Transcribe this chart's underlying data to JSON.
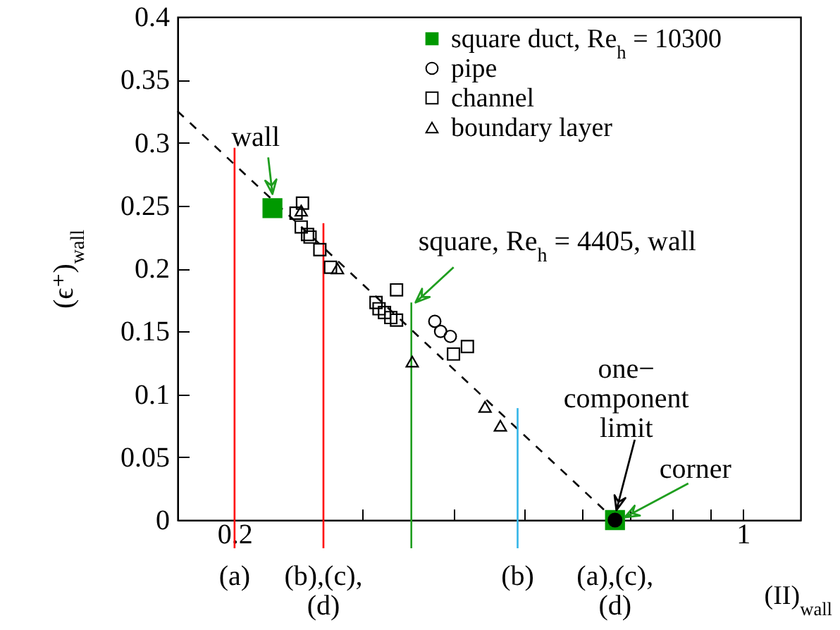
{
  "chart_data": {
    "type": "scatter",
    "xlabel": "(II)$_{wall}$",
    "ylabel": "(ϵ⁺)$_{wall}$",
    "log": "x",
    "xlim": [
      0.167,
      1.2
    ],
    "ylim": [
      0,
      0.4
    ],
    "xticks": [
      {
        "value": 0.2,
        "label": "0.2"
      },
      {
        "value": 0.3,
        "label": null
      },
      {
        "value": 0.4,
        "label": null
      },
      {
        "value": 0.5,
        "label": null
      },
      {
        "value": 0.6,
        "label": null
      },
      {
        "value": 0.7,
        "label": null
      },
      {
        "value": 0.8,
        "label": null
      },
      {
        "value": 0.9,
        "label": null
      },
      {
        "value": 1,
        "label": "1"
      }
    ],
    "yticks": [
      0,
      0.05,
      0.1,
      0.15,
      0.2,
      0.25,
      0.3,
      0.35,
      0.4
    ],
    "grid": false,
    "legend": "top right",
    "series": [
      {
        "name": "square duct, Re$_{h}$ = 10300",
        "marker": "square",
        "color": "#009900",
        "x": [
          0.2255,
          0.667
        ],
        "values": [
          0.248,
          0
        ]
      },
      {
        "name": "pipe",
        "marker": "circle",
        "color": "#000000",
        "x": [
          0.377,
          0.384,
          0.396
        ],
        "values": [
          0.158,
          0.15,
          0.146
        ]
      },
      {
        "name": "channel",
        "marker": "square",
        "color": "#000000",
        "x": [
          0.248,
          0.243,
          0.247,
          0.252,
          0.254,
          0.262,
          0.271,
          0.334,
          0.313,
          0.316,
          0.3215,
          0.328,
          0.334,
          0.418,
          0.4
        ],
        "values": [
          0.252,
          0.244,
          0.233,
          0.227,
          0.225,
          0.215,
          0.201,
          0.183,
          0.173,
          0.168,
          0.165,
          0.161,
          0.159,
          0.138,
          0.132
        ]
      },
      {
        "name": "boundary layer",
        "marker": "triangle",
        "color": "#000000",
        "x": [
          0.247,
          0.277,
          0.351,
          0.442,
          0.464
        ],
        "values": [
          0.246,
          0.2,
          0.126,
          0.09,
          0.075
        ]
      },
      {
        "marker": "circle",
        "color": "#000000",
        "x": [
          0.667
        ],
        "values": [
          0
        ]
      },
      {
        "type": "line",
        "line_style": "dashed",
        "color": "#000000",
        "x": [
          0.167,
          0.667
        ],
        "values": [
          0.325,
          0
        ]
      },
      {
        "type": "line",
        "line_style": "solid",
        "color": "#ff0000",
        "x": [
          0.2,
          0.2
        ],
        "values": [
          0,
          0.296
        ]
      },
      {
        "type": "line",
        "line_style": "solid",
        "color": "#ff0000",
        "x": [
          0.265,
          0.265
        ],
        "values": [
          0,
          0.236
        ]
      },
      {
        "type": "line",
        "line_style": "solid",
        "color": "#1f9e1f",
        "x": [
          0.35,
          0.35
        ],
        "values": [
          0,
          0.173
        ]
      },
      {
        "type": "line",
        "line_style": "solid",
        "color": "#33b5e8",
        "x": [
          0.49,
          0.49
        ],
        "values": [
          0,
          0.089
        ]
      }
    ],
    "annotations": [
      {
        "text": "wall",
        "x": 0.2255,
        "y": 0.248
      },
      {
        "text": "square, Re$_{h}$ = 4405, wall",
        "x": 0.35,
        "y": 0.173
      },
      {
        "text": "one−\ncomponent\nlimit",
        "x": 0.667,
        "y": 0
      },
      {
        "text": "corner",
        "x": 0.667,
        "y": 0
      },
      {
        "text": "(a)",
        "x": 0.2,
        "y": 0
      },
      {
        "text": "(b),(c),\n(d)",
        "x": 0.265,
        "y": 0
      },
      {
        "text": "(b)",
        "x": 0.49,
        "y": 0
      },
      {
        "text": "(a),(c),\n(d)",
        "x": 0.667,
        "y": 0
      }
    ]
  }
}
